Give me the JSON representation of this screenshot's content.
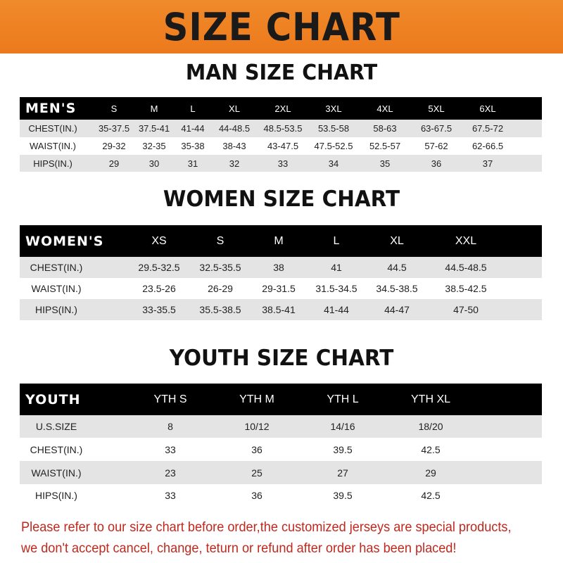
{
  "title": "SIZE CHART",
  "sections": {
    "men": {
      "title": "MAN SIZE CHART",
      "header": [
        "MEN'S",
        "S",
        "M",
        "L",
        "XL",
        "2XL",
        "3XL",
        "4XL",
        "5XL",
        "6XL"
      ],
      "rows": [
        [
          "CHEST(IN.)",
          "35-37.5",
          "37.5-41",
          "41-44",
          "44-48.5",
          "48.5-53.5",
          "53.5-58",
          "58-63",
          "63-67.5",
          "67.5-72"
        ],
        [
          "WAIST(IN.)",
          "29-32",
          "32-35",
          "35-38",
          "38-43",
          "43-47.5",
          "47.5-52.5",
          "52.5-57",
          "57-62",
          "62-66.5"
        ],
        [
          "HIPS(IN.)",
          "29",
          "30",
          "31",
          "32",
          "33",
          "34",
          "35",
          "36",
          "37"
        ]
      ]
    },
    "women": {
      "title": "WOMEN SIZE CHART",
      "header": [
        "WOMEN'S",
        "XS",
        "S",
        "M",
        "L",
        "XL",
        "XXL"
      ],
      "rows": [
        [
          "CHEST(IN.)",
          "29.5-32.5",
          "32.5-35.5",
          "38",
          "41",
          "44.5",
          "44.5-48.5"
        ],
        [
          "WAIST(IN.)",
          "23.5-26",
          "26-29",
          "29-31.5",
          "31.5-34.5",
          "34.5-38.5",
          "38.5-42.5"
        ],
        [
          "HIPS(IN.)",
          "33-35.5",
          "35.5-38.5",
          "38.5-41",
          "41-44",
          "44-47",
          "47-50"
        ]
      ]
    },
    "youth": {
      "title": "YOUTH SIZE CHART",
      "header": [
        "YOUTH",
        "YTH S",
        "YTH M",
        "YTH L",
        "YTH XL"
      ],
      "rows": [
        [
          "U.S.SIZE",
          "8",
          "10/12",
          "14/16",
          "18/20"
        ],
        [
          "CHEST(IN.)",
          "33",
          "36",
          "39.5",
          "42.5"
        ],
        [
          "WAIST(IN.)",
          "23",
          "25",
          "27",
          "29"
        ],
        [
          "HIPS(IN.)",
          "33",
          "36",
          "39.5",
          "42.5"
        ]
      ]
    }
  },
  "notice": [
    "Please refer to our size chart before order,the customized jerseys are special products,",
    "we don't accept cancel, change, teturn or refund after order has been placed!"
  ],
  "colors": {
    "banner": "#ec7a1c",
    "header_row": "#000000",
    "stripe": "#e4e4e4",
    "notice": "#c0281e"
  }
}
